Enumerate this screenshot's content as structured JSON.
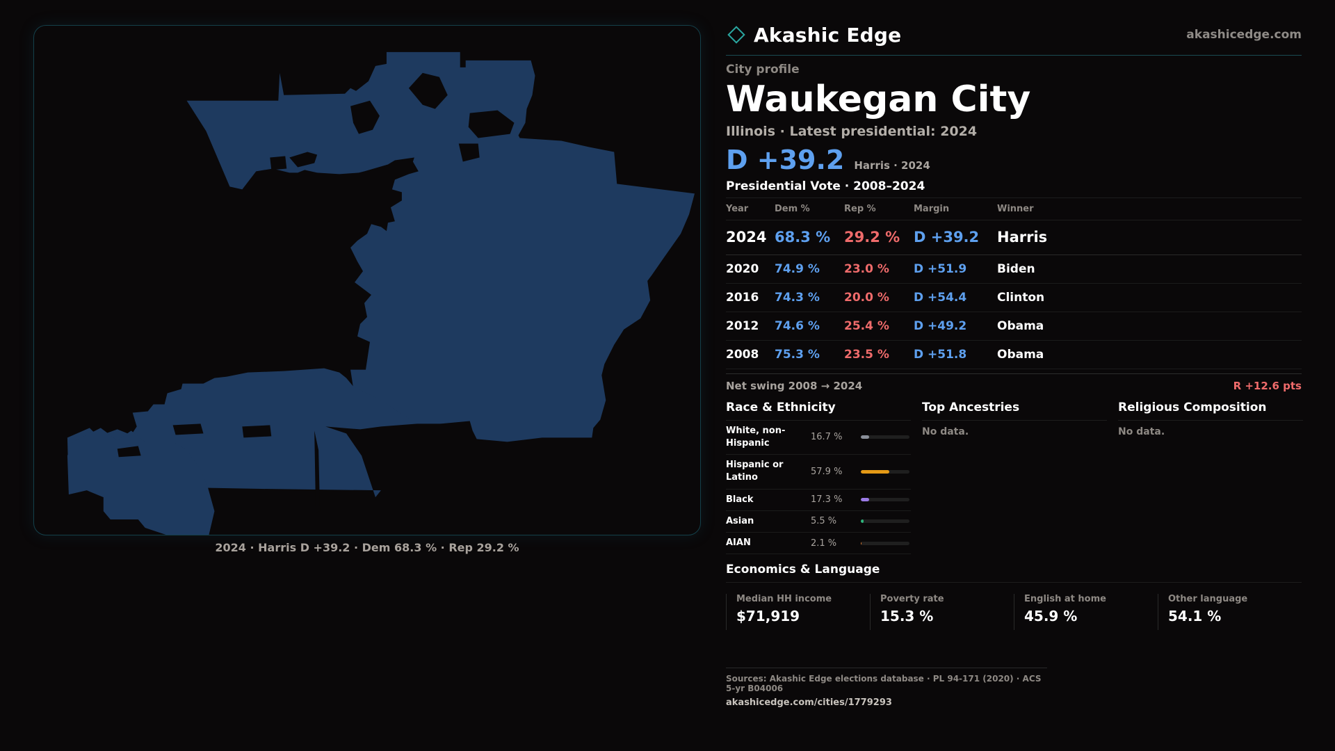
{
  "brand": {
    "name": "Akashic Edge",
    "url": "akashicedge.com"
  },
  "profile": {
    "eyebrow": "City profile",
    "name": "Waukegan City",
    "subtitle": "Illinois · Latest presidential: 2024",
    "headline_margin": "D +39.2",
    "headline_note": "Harris · 2024"
  },
  "map": {
    "fill_color": "#1e3a5f",
    "caption": "2024 · Harris D +39.2 · Dem 68.3 % · Rep 29.2 %"
  },
  "presidential": {
    "title": "Presidential Vote · 2008–2024",
    "headers": {
      "year": "Year",
      "dem": "Dem %",
      "rep": "Rep %",
      "margin": "Margin",
      "winner": "Winner"
    },
    "rows": [
      {
        "year": "2024",
        "dem": "68.3 %",
        "rep": "29.2 %",
        "margin": "D +39.2",
        "winner": "Harris"
      },
      {
        "year": "2020",
        "dem": "74.9 %",
        "rep": "23.0 %",
        "margin": "D +51.9",
        "winner": "Biden"
      },
      {
        "year": "2016",
        "dem": "74.3 %",
        "rep": "20.0 %",
        "margin": "D +54.4",
        "winner": "Clinton"
      },
      {
        "year": "2012",
        "dem": "74.6 %",
        "rep": "25.4 %",
        "margin": "D +49.2",
        "winner": "Obama"
      },
      {
        "year": "2008",
        "dem": "75.3 %",
        "rep": "23.5 %",
        "margin": "D +51.8",
        "winner": "Obama"
      }
    ],
    "swing_label": "Net swing 2008 → 2024",
    "swing_value": "R +12.6 pts"
  },
  "race": {
    "title": "Race & Ethnicity",
    "rows": [
      {
        "label": "White, non-Hispanic",
        "pct": "16.7 %",
        "value": 0.167,
        "color": "#8a8f99"
      },
      {
        "label": "Hispanic or Latino",
        "pct": "57.9 %",
        "value": 0.579,
        "color": "#e59a16"
      },
      {
        "label": "Black",
        "pct": "17.3 %",
        "value": 0.173,
        "color": "#9b7be6"
      },
      {
        "label": "Asian",
        "pct": "5.5 %",
        "value": 0.055,
        "color": "#2fb47c"
      },
      {
        "label": "AIAN",
        "pct": "2.1 %",
        "value": 0.021,
        "color": "#e07a2e"
      }
    ]
  },
  "ancestries": {
    "title": "Top Ancestries",
    "empty": "No data."
  },
  "religion": {
    "title": "Religious Composition",
    "empty": "No data."
  },
  "economics": {
    "title": "Economics & Language",
    "stats": [
      {
        "label": "Median HH income",
        "value": "$71,919"
      },
      {
        "label": "Poverty rate",
        "value": "15.3 %"
      },
      {
        "label": "English at home",
        "value": "45.9 %"
      },
      {
        "label": "Other language",
        "value": "54.1 %"
      }
    ]
  },
  "sources": {
    "line": "Sources: Akashic Edge elections database · PL 94-171 (2020) · ACS 5-yr B04006",
    "url": "akashicedge.com/cities/1779293"
  }
}
